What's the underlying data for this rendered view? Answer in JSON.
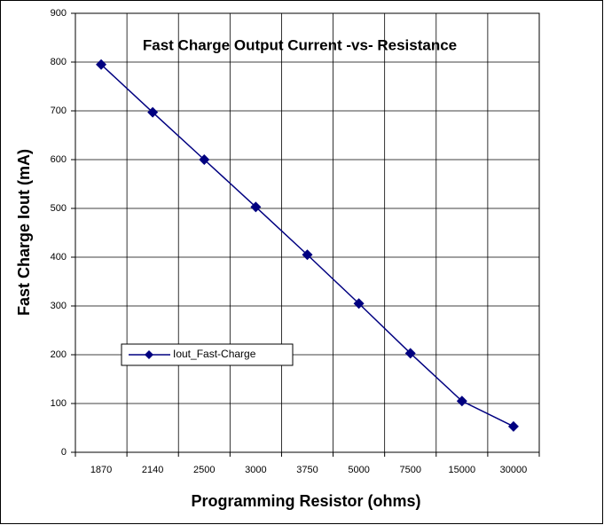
{
  "chart_data": {
    "type": "line",
    "title": "Fast Charge Output Current -vs- Resistance",
    "x_label": "Programming Resistor (ohms)",
    "y_label": "Fast Charge Iout (mA)",
    "categories": [
      "1870",
      "2140",
      "2500",
      "3000",
      "3750",
      "5000",
      "7500",
      "15000",
      "30000"
    ],
    "series": [
      {
        "name": "Iout_Fast-Charge",
        "color": "#000080",
        "values": [
          795,
          697,
          600,
          503,
          405,
          305,
          203,
          105,
          53
        ]
      }
    ],
    "ylim": [
      0,
      900
    ],
    "yticks": [
      0,
      100,
      200,
      300,
      400,
      500,
      600,
      700,
      800,
      900
    ],
    "grid": true,
    "legend": "lower left"
  }
}
